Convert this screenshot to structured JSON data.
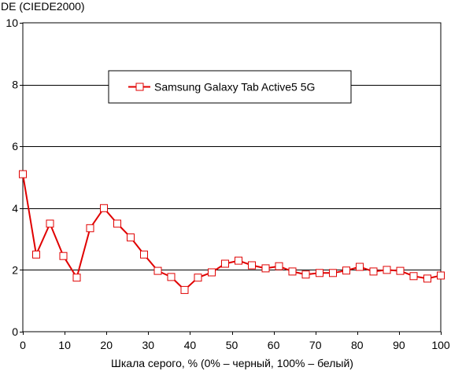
{
  "chart_data": {
    "type": "line",
    "title": "",
    "ylabel": "DE (CIEDE2000)",
    "xlabel": "Шкала серого, % (0% – черный, 100% – белый)",
    "xlim": [
      0,
      100
    ],
    "ylim": [
      0,
      10
    ],
    "x_ticks": [
      "0",
      "10",
      "20",
      "30",
      "40",
      "50",
      "60",
      "70",
      "80",
      "90",
      "100"
    ],
    "y_ticks": [
      "0",
      "2",
      "4",
      "6",
      "8",
      "10"
    ],
    "grid": "horizontal",
    "legend_position": "top-center",
    "series": [
      {
        "name": "Samsung Galaxy Tab Active5 5G",
        "color": "#e00000",
        "marker": "square",
        "x": [
          0,
          3.2,
          6.5,
          9.7,
          12.9,
          16.1,
          19.4,
          22.6,
          25.8,
          29.0,
          32.3,
          35.5,
          38.7,
          41.9,
          45.2,
          48.4,
          51.6,
          54.8,
          58.1,
          61.3,
          64.5,
          67.7,
          71.0,
          74.2,
          77.4,
          80.6,
          83.9,
          87.1,
          90.3,
          93.5,
          96.8,
          100
        ],
        "y": [
          5.1,
          2.5,
          3.5,
          2.45,
          1.75,
          3.35,
          4.0,
          3.5,
          3.05,
          2.5,
          1.97,
          1.77,
          1.35,
          1.75,
          1.92,
          2.2,
          2.3,
          2.15,
          2.05,
          2.12,
          1.95,
          1.85,
          1.9,
          1.9,
          1.98,
          2.1,
          1.95,
          2.0,
          1.97,
          1.8,
          1.72,
          1.82
        ]
      }
    ]
  }
}
